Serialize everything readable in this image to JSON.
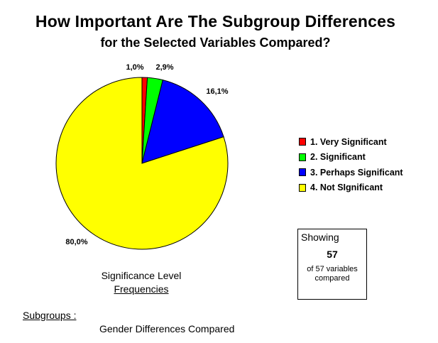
{
  "chart_data": {
    "type": "pie",
    "title": "How Important Are The Subgroup Differences",
    "subtitle": "for the Selected Variables Compared?",
    "slices": [
      {
        "label": "1. Very Significant",
        "value": 1.0,
        "display": "1,0%",
        "color": "#ff0000"
      },
      {
        "label": "2. Significant",
        "value": 2.9,
        "display": "2,9%",
        "color": "#00ff00"
      },
      {
        "label": "3. Perhaps Significant",
        "value": 16.1,
        "display": "16,1%",
        "color": "#0000ff"
      },
      {
        "label": "4. Not SIgnificant",
        "value": 80.0,
        "display": "80,0%",
        "color": "#ffff00"
      }
    ],
    "legend_position": "right",
    "caption_line1": "Significance Level",
    "caption_line2": "Frequencies"
  },
  "showing_box": {
    "heading": "Showing",
    "count": "57",
    "line1": "of 57 variables",
    "line2": "compared"
  },
  "subgroups": {
    "label": "Subgroups :",
    "value": "Gender Differences Compared"
  }
}
